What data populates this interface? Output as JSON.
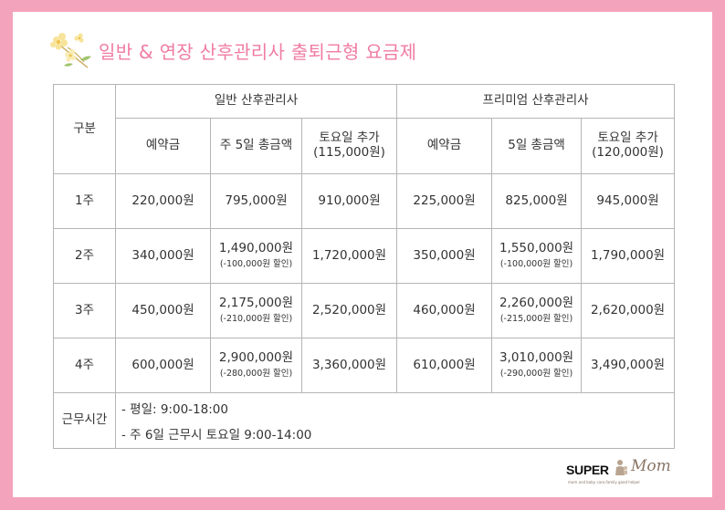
{
  "title": "일반 & 연장 산후관리사 출퇴근형 요금제",
  "table": {
    "category_header": "구분",
    "groups": [
      {
        "name": "일반 산후관리사",
        "columns": [
          "예약금",
          "주 5일 총금액",
          "토요일 추가",
          "(115,000원)"
        ]
      },
      {
        "name": "프리미엄 산후관리사",
        "columns": [
          "예약금",
          "5일 총금액",
          "토요일 추가",
          "(120,000원)"
        ]
      }
    ],
    "rows": [
      {
        "week": "1주",
        "general": {
          "deposit": "220,000원",
          "total": "795,000원",
          "total_note": "",
          "saturday": "910,000원"
        },
        "premium": {
          "deposit": "225,000원",
          "total": "825,000원",
          "total_note": "",
          "saturday": "945,000원"
        }
      },
      {
        "week": "2주",
        "general": {
          "deposit": "340,000원",
          "total": "1,490,000원",
          "total_note": "(-100,000원 할인)",
          "saturday": "1,720,000원"
        },
        "premium": {
          "deposit": "350,000원",
          "total": "1,550,000원",
          "total_note": "(-100,000원 할인)",
          "saturday": "1,790,000원"
        }
      },
      {
        "week": "3주",
        "general": {
          "deposit": "450,000원",
          "total": "2,175,000원",
          "total_note": "(-210,000원 할인)",
          "saturday": "2,520,000원"
        },
        "premium": {
          "deposit": "460,000원",
          "total": "2,260,000원",
          "total_note": "(-215,000원 할인)",
          "saturday": "2,620,000원"
        }
      },
      {
        "week": "4주",
        "general": {
          "deposit": "600,000원",
          "total": "2,900,000원",
          "total_note": "(-280,000원 할인)",
          "saturday": "3,360,000원"
        },
        "premium": {
          "deposit": "610,000원",
          "total": "3,010,000원",
          "total_note": "(-290,000원 할인)",
          "saturday": "3,490,000원"
        }
      }
    ],
    "hours": {
      "label": "근무시간",
      "lines": [
        "- 평일: 9:00-18:00",
        "- 주 6일 근무시 토요일 9:00-14:00"
      ]
    }
  },
  "logo": {
    "brand": "SUPER",
    "script": "Mom",
    "tagline": "mom and baby care,family good helper"
  },
  "colors": {
    "frame": "#f4a3bc",
    "title": "#f07ca2",
    "border": "#b5b5b5",
    "text": "#333333"
  },
  "icons": [
    "flower-icon",
    "logo-figure-icon"
  ]
}
